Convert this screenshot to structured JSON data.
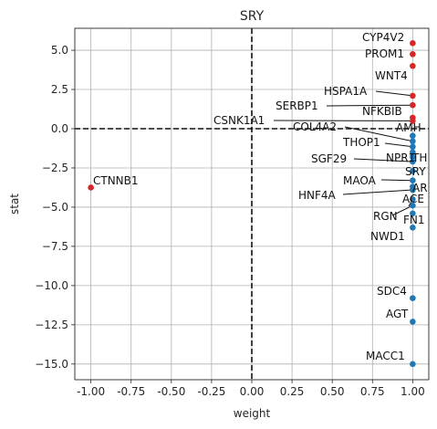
{
  "chart_data": {
    "type": "scatter",
    "title": "SRY",
    "xlabel": "weight",
    "ylabel": "stat",
    "xlim": [
      -1.1,
      1.1
    ],
    "ylim": [
      -16,
      6.4
    ],
    "xticks": [
      "-1.00",
      "-0.75",
      "-0.50",
      "-0.25",
      "0.00",
      "0.25",
      "0.50",
      "0.75",
      "1.00"
    ],
    "xtick_values": [
      -1,
      -0.75,
      -0.5,
      -0.25,
      0,
      0.25,
      0.5,
      0.75,
      1
    ],
    "yticks": [
      "−15.0",
      "−12.5",
      "−10.0",
      "−7.5",
      "−5.0",
      "−2.5",
      "0.0",
      "2.5",
      "5.0"
    ],
    "ytick_values": [
      -15,
      -12.5,
      -10,
      -7.5,
      -5,
      -2.5,
      0,
      2.5,
      5
    ],
    "grid": true,
    "reference_lines": {
      "x": 0,
      "y": 0,
      "style": "dashed"
    },
    "colors": {
      "positive": "#d62728",
      "negative": "#1f77b4"
    },
    "points": [
      {
        "label": "CYP4V2",
        "x": 1.0,
        "y": 5.45,
        "sign": "positive"
      },
      {
        "label": "PROM1",
        "x": 1.0,
        "y": 4.75,
        "sign": "positive"
      },
      {
        "label": "WNT4",
        "x": 1.0,
        "y": 4.0,
        "sign": "positive"
      },
      {
        "label": "HSPA1A",
        "x": 1.0,
        "y": 2.1,
        "sign": "positive"
      },
      {
        "label": "SERBP1",
        "x": 1.0,
        "y": 1.5,
        "sign": "positive"
      },
      {
        "label": "NFKBIB",
        "x": 1.0,
        "y": 0.7,
        "sign": "positive"
      },
      {
        "label": "CSNK1A1",
        "x": 1.0,
        "y": 0.5,
        "sign": "positive"
      },
      {
        "label": "AMH",
        "x": 1.0,
        "y": -0.45,
        "sign": "negative"
      },
      {
        "label": "COL4A2",
        "x": 1.0,
        "y": -0.8,
        "sign": "negative"
      },
      {
        "label": "THOP1",
        "x": 1.0,
        "y": -1.15,
        "sign": "negative"
      },
      {
        "label": "NPR1",
        "x": 1.0,
        "y": -1.5,
        "sign": "negative"
      },
      {
        "label": "TH",
        "x": 1.0,
        "y": -1.8,
        "sign": "negative"
      },
      {
        "label": "SGF29",
        "x": 1.0,
        "y": -2.1,
        "sign": "negative"
      },
      {
        "label": "SRY",
        "x": 1.0,
        "y": -2.7,
        "sign": "negative"
      },
      {
        "label": "MAOA",
        "x": 1.0,
        "y": -3.3,
        "sign": "negative"
      },
      {
        "label": "AR",
        "x": 1.0,
        "y": -3.7,
        "sign": "negative"
      },
      {
        "label": "HNF4A",
        "x": 1.0,
        "y": -3.9,
        "sign": "negative"
      },
      {
        "label": "ACE",
        "x": 1.0,
        "y": -4.5,
        "sign": "negative"
      },
      {
        "label": "RGN",
        "x": 1.0,
        "y": -4.9,
        "sign": "negative"
      },
      {
        "label": "FN1",
        "x": 1.0,
        "y": -5.4,
        "sign": "negative"
      },
      {
        "label": "NWD1",
        "x": 1.0,
        "y": -6.3,
        "sign": "negative"
      },
      {
        "label": "SDC4",
        "x": 1.0,
        "y": -10.8,
        "sign": "negative"
      },
      {
        "label": "AGT",
        "x": 1.0,
        "y": -12.3,
        "sign": "negative"
      },
      {
        "label": "MACC1",
        "x": 1.0,
        "y": -15.0,
        "sign": "negative"
      },
      {
        "label": "CTNNB1",
        "x": -1.0,
        "y": -3.75,
        "sign": "positive"
      }
    ]
  }
}
